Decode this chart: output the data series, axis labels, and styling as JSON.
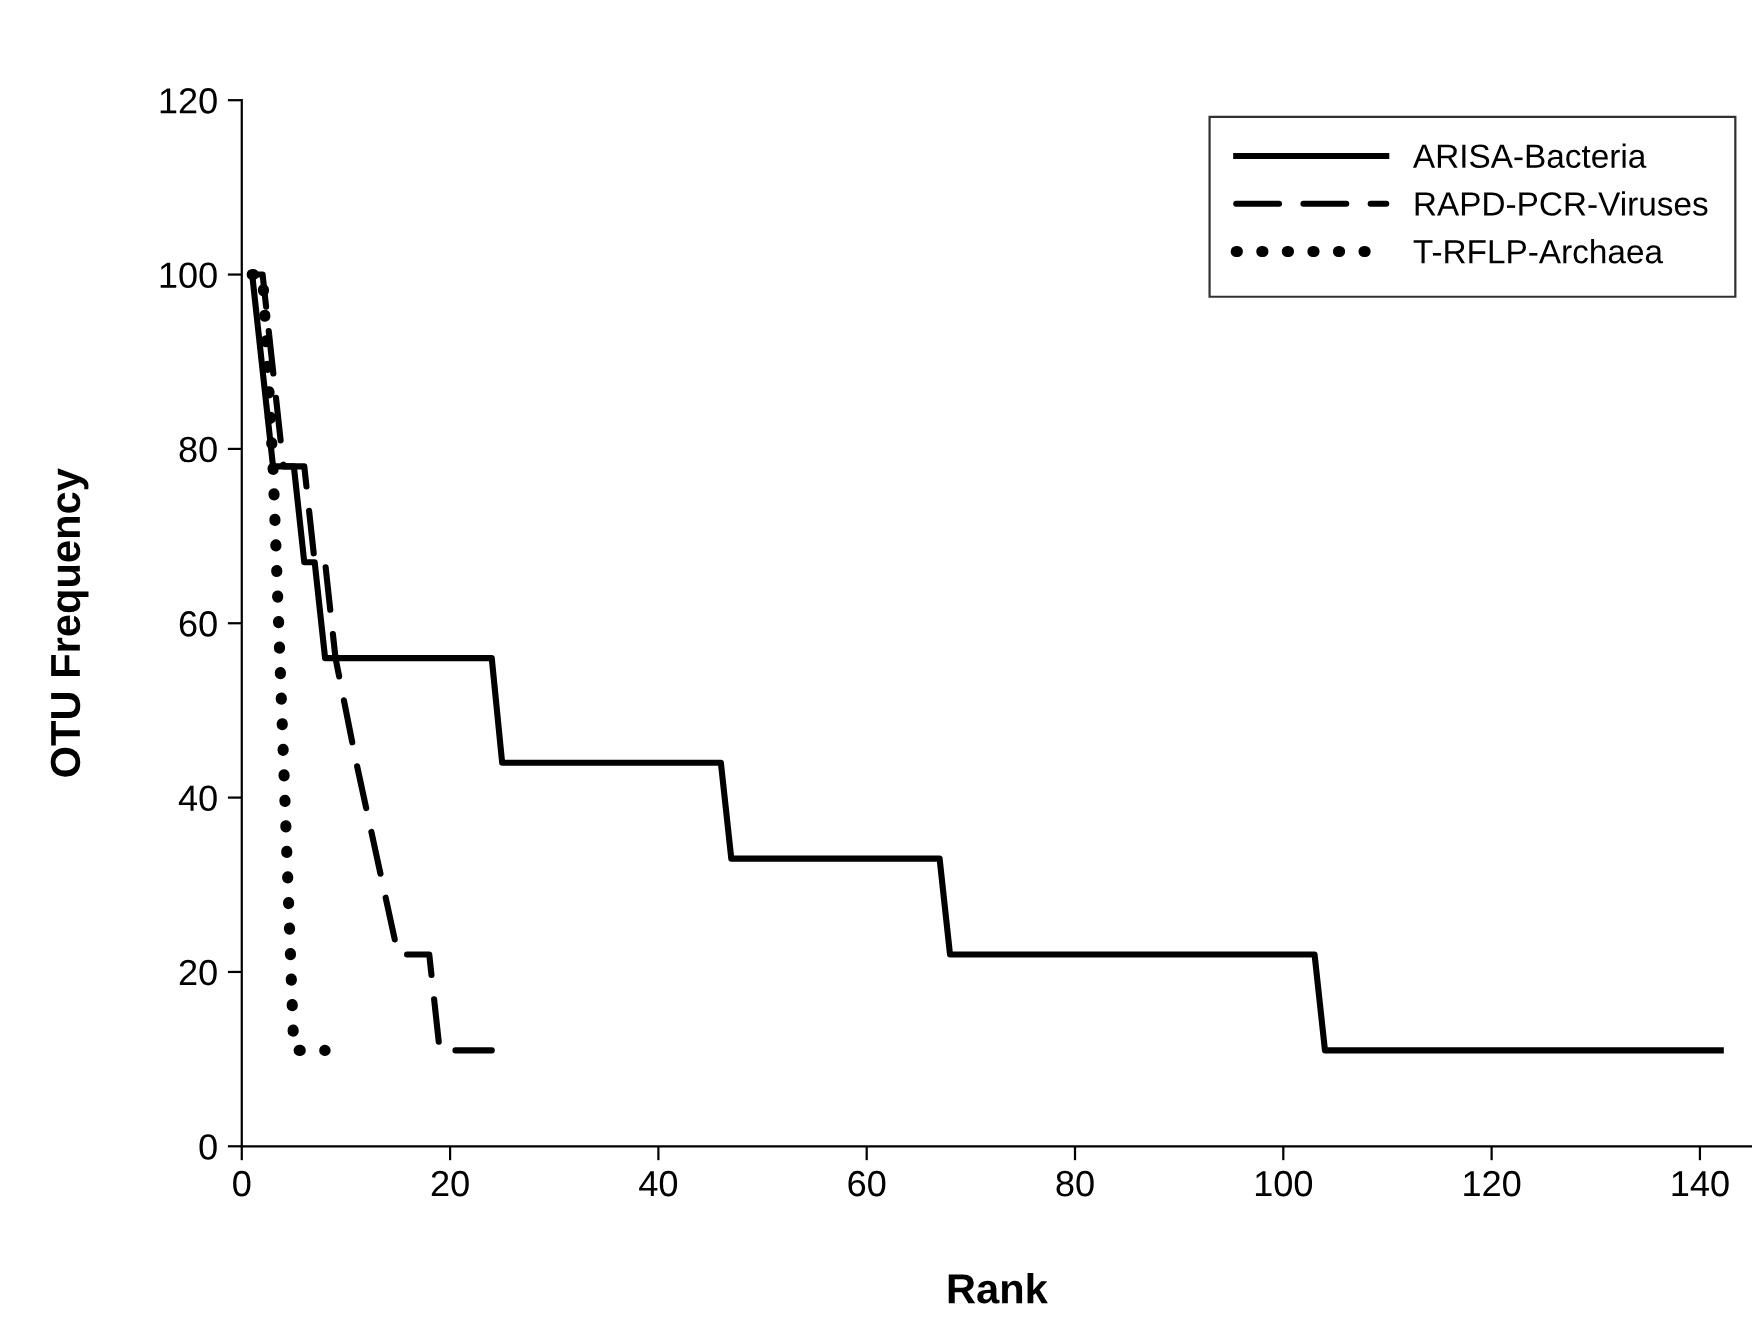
{
  "chart_data": {
    "type": "line",
    "xlabel": "Rank",
    "ylabel": "OTU Frequency",
    "xlim": [
      0,
      145
    ],
    "ylim": [
      0,
      120
    ],
    "xticks": [
      0,
      20,
      40,
      60,
      80,
      100,
      120,
      140
    ],
    "yticks": [
      0,
      20,
      40,
      60,
      80,
      100,
      120
    ],
    "legend": "top right",
    "grid": false,
    "marker": "none",
    "series": [
      {
        "name": "ARISA-Bacteria",
        "color": "#000000",
        "line_style": "solid",
        "x": [
          1,
          3,
          5,
          6,
          7,
          8,
          24,
          25,
          46,
          47,
          67,
          68,
          103,
          104,
          142
        ],
        "values": [
          100,
          78,
          78,
          67,
          67,
          56,
          56,
          44,
          44,
          33,
          33,
          22,
          22,
          11,
          11
        ]
      },
      {
        "name": "RAPD-PCR-Viruses",
        "color": "#000000",
        "line_style": "dashed",
        "x": [
          1,
          2,
          4,
          6,
          7,
          8,
          9,
          11,
          13,
          15,
          18,
          19,
          24
        ],
        "values": [
          100,
          100,
          78,
          78,
          67,
          67,
          56,
          44,
          33,
          22,
          22,
          11,
          11
        ]
      },
      {
        "name": "T-RFLP-Archaea",
        "color": "#000000",
        "line_style": "dotted",
        "x": [
          1,
          2,
          3,
          5,
          8
        ],
        "values": [
          100,
          100,
          78,
          11,
          11
        ]
      }
    ]
  }
}
